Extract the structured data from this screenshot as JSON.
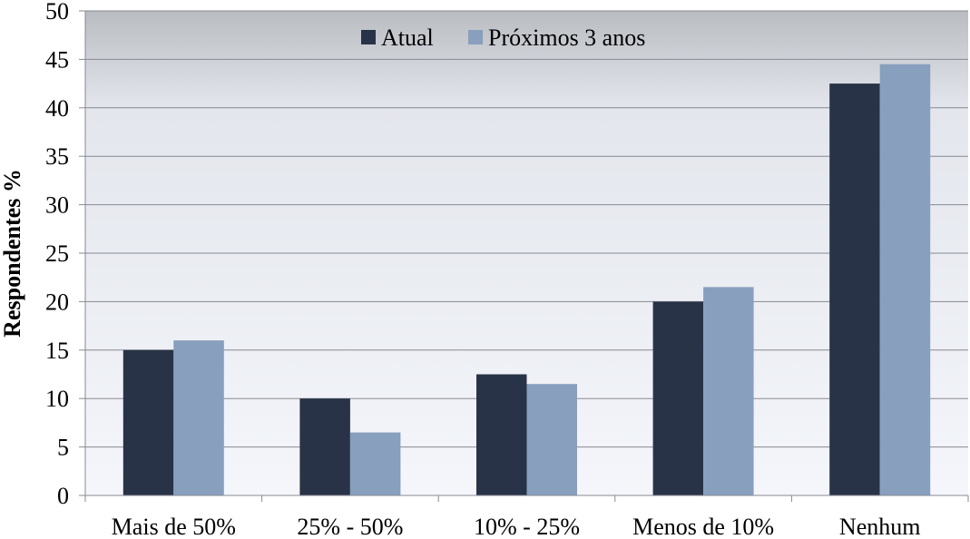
{
  "chart_data": {
    "type": "bar",
    "title": "",
    "xlabel": "",
    "ylabel": "Respondentes %",
    "ylim": [
      0,
      50
    ],
    "yticks": [
      0,
      5,
      10,
      15,
      20,
      25,
      30,
      35,
      40,
      45,
      50
    ],
    "grid": "horizontal",
    "legend_position": "top-center",
    "categories": [
      "Mais de 50%",
      "25% - 50%",
      "10% - 25%",
      "Menos de 10%",
      "Nenhum"
    ],
    "series": [
      {
        "name": "Atual",
        "color": "#283347",
        "values": [
          15,
          10,
          12.5,
          20,
          42.5
        ]
      },
      {
        "name": "Próximos 3 anos",
        "color": "#889fbe",
        "values": [
          16,
          6.5,
          11.5,
          21.5,
          44.5
        ]
      }
    ],
    "background_gradient": [
      "#b9bcc1",
      "#f4f6fb"
    ]
  }
}
